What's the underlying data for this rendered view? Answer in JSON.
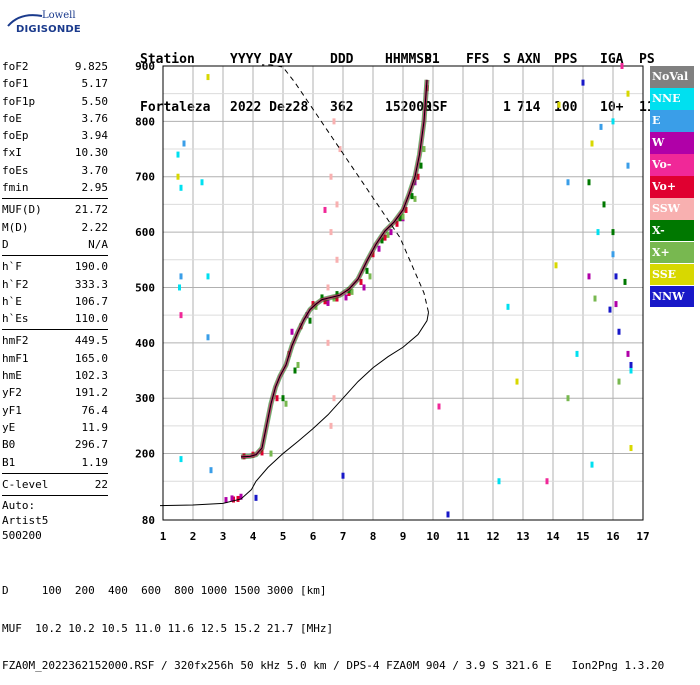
{
  "logo": {
    "line1": "Lowell",
    "line2": "DIGISONDE"
  },
  "header": {
    "labels": [
      "Station",
      "YYYY DAY",
      "DDD",
      "HHMMSS",
      "P1",
      "FFS",
      "S",
      "AXN",
      "PPS",
      "IGA",
      "PS"
    ],
    "values": [
      "Fortaleza",
      "2022 Dez28",
      "362",
      "152000",
      "RSF",
      "",
      "1",
      "714",
      "100",
      "10+",
      "11"
    ]
  },
  "params": {
    "group1": [
      {
        "name": "foF2",
        "value": "9.825"
      },
      {
        "name": "foF1",
        "value": "5.17"
      },
      {
        "name": "foF1p",
        "value": "5.50"
      },
      {
        "name": "foE",
        "value": "3.76"
      },
      {
        "name": "foEp",
        "value": "3.94"
      },
      {
        "name": "fxI",
        "value": "10.30"
      },
      {
        "name": "foEs",
        "value": "3.70"
      },
      {
        "name": "fmin",
        "value": "2.95"
      }
    ],
    "group2": [
      {
        "name": "MUF(D)",
        "value": "21.72"
      },
      {
        "name": "M(D)",
        "value": "2.22"
      },
      {
        "name": "D",
        "value": "N/A"
      }
    ],
    "group3": [
      {
        "name": "h`F",
        "value": "190.0"
      },
      {
        "name": "h`F2",
        "value": "333.3"
      },
      {
        "name": "h`E",
        "value": "106.7"
      },
      {
        "name": "h`Es",
        "value": "110.0"
      }
    ],
    "group4": [
      {
        "name": "hmF2",
        "value": "449.5"
      },
      {
        "name": "hmF1",
        "value": "165.0"
      },
      {
        "name": "hmE",
        "value": "102.3"
      },
      {
        "name": "yF2",
        "value": "191.2"
      },
      {
        "name": "yF1",
        "value": "76.4"
      },
      {
        "name": "yE",
        "value": "11.9"
      },
      {
        "name": "B0",
        "value": "296.7"
      },
      {
        "name": "B1",
        "value": "1.19"
      }
    ],
    "group5": [
      {
        "name": "C-level",
        "value": "22"
      }
    ],
    "auto": [
      "Auto:",
      "Artist5",
      "500200"
    ]
  },
  "legend": [
    {
      "label": "NoVal",
      "color": "#808080"
    },
    {
      "label": "NNE",
      "color": "#00e0f0"
    },
    {
      "label": "E",
      "color": "#3a9ee8"
    },
    {
      "label": "W",
      "color": "#b000a8"
    },
    {
      "label": "Vo-",
      "color": "#f02898"
    },
    {
      "label": "Vo+",
      "color": "#e00030"
    },
    {
      "label": "SSW",
      "color": "#f8b0b0"
    },
    {
      "label": "X-",
      "color": "#007800"
    },
    {
      "label": "X+",
      "color": "#78b850"
    },
    {
      "label": "SSE",
      "color": "#d8d800"
    },
    {
      "label": "NNW",
      "color": "#1818c8"
    }
  ],
  "chart_data": {
    "type": "scatter",
    "xlim": [
      1,
      17
    ],
    "ylim": [
      80,
      900
    ],
    "xticks": [
      1,
      2,
      3,
      4,
      5,
      6,
      7,
      8,
      9,
      10,
      11,
      12,
      13,
      14,
      15,
      16,
      17
    ],
    "yticks": [
      80,
      200,
      300,
      400,
      500,
      600,
      700,
      800,
      900
    ],
    "grid": true,
    "trace_virtual": {
      "x": [
        3.6,
        3.9,
        4.1,
        4.3,
        4.45,
        4.6,
        4.75,
        4.9,
        5.1,
        5.3,
        5.5,
        5.7,
        5.9,
        6.1,
        6.3,
        6.6,
        6.9,
        7.2,
        7.5,
        7.8,
        8.1,
        8.4,
        8.7,
        9.0,
        9.2,
        9.4,
        9.55,
        9.7,
        9.8
      ],
      "y": [
        194,
        195,
        198,
        210,
        250,
        290,
        320,
        340,
        360,
        395,
        420,
        442,
        460,
        470,
        478,
        482,
        486,
        497,
        515,
        548,
        578,
        602,
        618,
        640,
        668,
        700,
        740,
        800,
        875
      ]
    },
    "profile_solid": {
      "x": [
        0.9,
        2.0,
        3.0,
        3.6,
        3.95,
        4.1,
        4.5,
        5.0,
        5.5,
        6.0,
        6.5,
        7.0,
        7.5,
        8.0,
        8.5,
        9.0,
        9.5,
        9.8,
        9.85
      ],
      "y": [
        106,
        107,
        110,
        118,
        135,
        150,
        175,
        200,
        222,
        245,
        270,
        300,
        330,
        355,
        375,
        392,
        415,
        440,
        455
      ]
    },
    "profile_dashed": {
      "x": [
        9.85,
        9.7,
        9.3,
        8.9,
        8.4,
        7.9,
        7.4,
        6.9,
        6.4,
        5.9,
        5.4,
        5.0,
        4.6,
        4.3
      ],
      "y": [
        455,
        490,
        540,
        590,
        630,
        670,
        710,
        750,
        790,
        830,
        870,
        898,
        902,
        902
      ]
    },
    "echoes": [
      {
        "series": "Vo+",
        "x": [
          3.35,
          3.5,
          3.7,
          4.0,
          4.3,
          4.8,
          5.2,
          5.6,
          6.0,
          6.4,
          6.8,
          7.2,
          7.6,
          8.0,
          8.4,
          8.8,
          9.1,
          9.5,
          9.8
        ],
        "y": [
          117,
          118,
          195,
          198,
          202,
          300,
          380,
          430,
          470,
          475,
          480,
          490,
          510,
          560,
          590,
          615,
          640,
          700,
          860
        ]
      },
      {
        "series": "W",
        "x": [
          3.1,
          3.3,
          3.6,
          5.3,
          5.8,
          6.5,
          7.1,
          7.7,
          8.2,
          8.6,
          9.0,
          9.4,
          15.2,
          16.1,
          16.5
        ],
        "y": [
          116,
          119,
          122,
          420,
          450,
          472,
          482,
          500,
          570,
          600,
          625,
          690,
          520,
          470,
          380
        ]
      },
      {
        "series": "X-",
        "x": [
          5.0,
          5.4,
          5.9,
          6.3,
          6.8,
          7.2,
          7.8,
          8.3,
          8.9,
          9.3,
          9.6,
          15.2,
          15.7,
          16.0,
          16.4
        ],
        "y": [
          300,
          350,
          440,
          482,
          488,
          495,
          530,
          585,
          625,
          665,
          720,
          690,
          650,
          600,
          510
        ]
      },
      {
        "series": "X+",
        "x": [
          4.6,
          5.1,
          5.5,
          6.1,
          6.7,
          7.3,
          7.9,
          8.5,
          9.0,
          9.4,
          9.7,
          14.5,
          15.4,
          16.2
        ],
        "y": [
          200,
          290,
          360,
          465,
          480,
          492,
          520,
          595,
          628,
          660,
          750,
          300,
          480,
          330
        ]
      },
      {
        "series": "NNE",
        "x": [
          1.5,
          1.6,
          2.3,
          2.5,
          1.55,
          1.6,
          12.5,
          14.8,
          15.5,
          16.0,
          16.6,
          12.2,
          15.3
        ],
        "y": [
          740,
          680,
          690,
          520,
          500,
          190,
          465,
          380,
          600,
          800,
          350,
          150,
          180
        ]
      },
      {
        "series": "E",
        "x": [
          1.7,
          2.5,
          14.5,
          15.6,
          16.0,
          16.5,
          1.6,
          2.6
        ],
        "y": [
          760,
          410,
          690,
          790,
          560,
          720,
          520,
          170
        ]
      },
      {
        "series": "SSE",
        "x": [
          1.5,
          2.5,
          14.2,
          15.3,
          16.5,
          12.8,
          14.1,
          16.6
        ],
        "y": [
          700,
          880,
          830,
          760,
          850,
          330,
          540,
          210
        ]
      },
      {
        "series": "NNW",
        "x": [
          4.1,
          7.0,
          10.5,
          15.0,
          16.2,
          16.6,
          15.9,
          16.1
        ],
        "y": [
          120,
          160,
          90,
          870,
          420,
          360,
          460,
          520
        ]
      },
      {
        "series": "Vo-",
        "x": [
          1.6,
          10.2,
          13.8,
          16.3,
          6.4
        ],
        "y": [
          450,
          285,
          150,
          900,
          640
        ]
      },
      {
        "series": "SSW",
        "x": [
          6.5,
          6.5,
          6.6,
          6.6,
          6.7,
          6.8,
          6.8,
          6.9,
          6.7,
          6.6
        ],
        "y": [
          400,
          500,
          600,
          700,
          800,
          550,
          650,
          750,
          300,
          250
        ]
      }
    ]
  },
  "footer": {
    "line1": "D     100  200  400  600  800 1000 1500 3000 [km]",
    "line2": "MUF  10.2 10.2 10.5 11.0 11.6 12.5 15.2 21.7 [MHz]",
    "line3": "FZA0M_2022362152000.RSF / 320fx256h 50 kHz 5.0 km / DPS-4 FZA0M 904 / 3.9 S 321.6 E   Ion2Png 1.3.20"
  }
}
